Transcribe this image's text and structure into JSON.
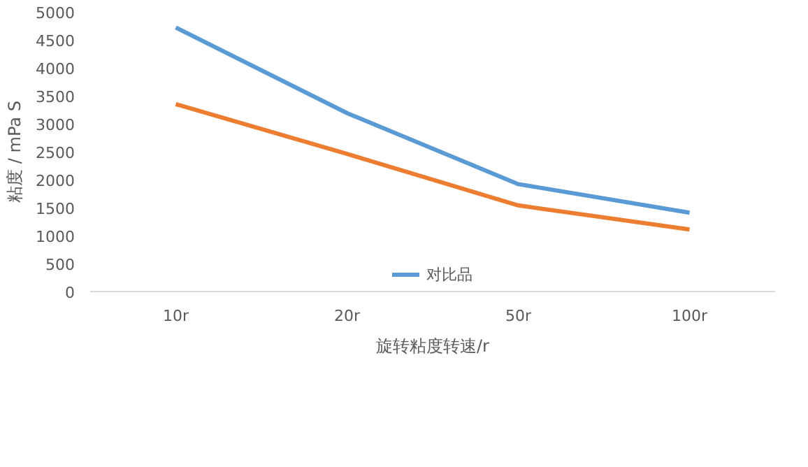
{
  "chart_data": {
    "type": "line",
    "xlabel": "旋转粘度转速/r",
    "ylabel": "粘度 / mPa S",
    "categories": [
      "10r",
      "20r",
      "50r",
      "100r"
    ],
    "series": [
      {
        "name": "对比品",
        "color": "#5b9bd5",
        "values": [
          4720,
          3190,
          1920,
          1410
        ]
      },
      {
        "color": "#ed7d31",
        "values": [
          3350,
          2460,
          1540,
          1110
        ]
      }
    ],
    "ylim": [
      0,
      5000
    ],
    "yticks": [
      0,
      500,
      1000,
      1500,
      2000,
      2500,
      3000,
      3500,
      4000,
      4500,
      5000
    ],
    "grid": false,
    "legend": "bottom",
    "line_style": "solid"
  }
}
